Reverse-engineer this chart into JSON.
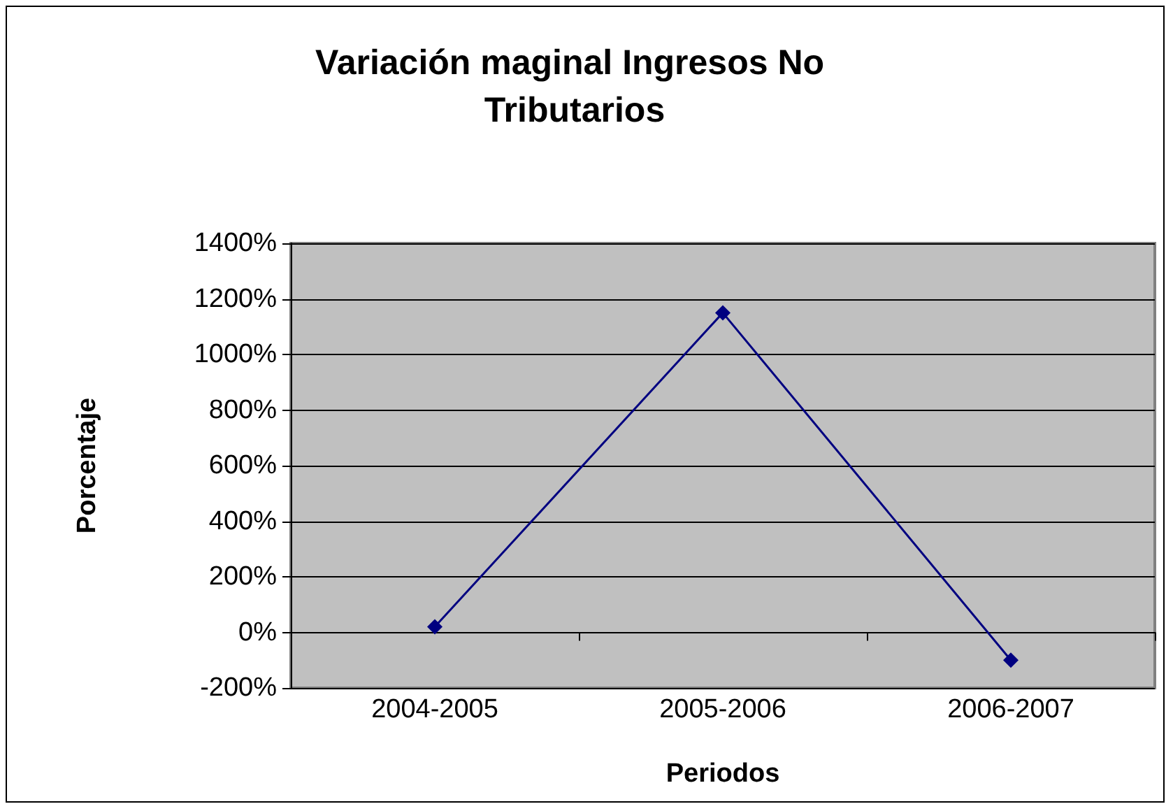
{
  "chart_data": {
    "type": "line",
    "title": "Variación maginal Ingresos No Tributarios",
    "xlabel": "Periodos",
    "ylabel": "Porcentaje",
    "categories": [
      "2004-2005",
      "2005-2006",
      "2006-2007"
    ],
    "series": [
      {
        "color": "#000080",
        "values": [
          20,
          1150,
          -100
        ]
      }
    ],
    "ylim": [
      -200,
      1400
    ],
    "yticks": [
      {
        "value": -200,
        "label": "-200%"
      },
      {
        "value": 0,
        "label": "0%"
      },
      {
        "value": 200,
        "label": "200%"
      },
      {
        "value": 400,
        "label": "400%"
      },
      {
        "value": 600,
        "label": "600%"
      },
      {
        "value": 800,
        "label": "800%"
      },
      {
        "value": 1000,
        "label": "1000%"
      },
      {
        "value": 1200,
        "label": "1200%"
      },
      {
        "value": 1400,
        "label": "1400%"
      }
    ],
    "grid": "y",
    "marker": "diamond",
    "line_style": "solid"
  }
}
